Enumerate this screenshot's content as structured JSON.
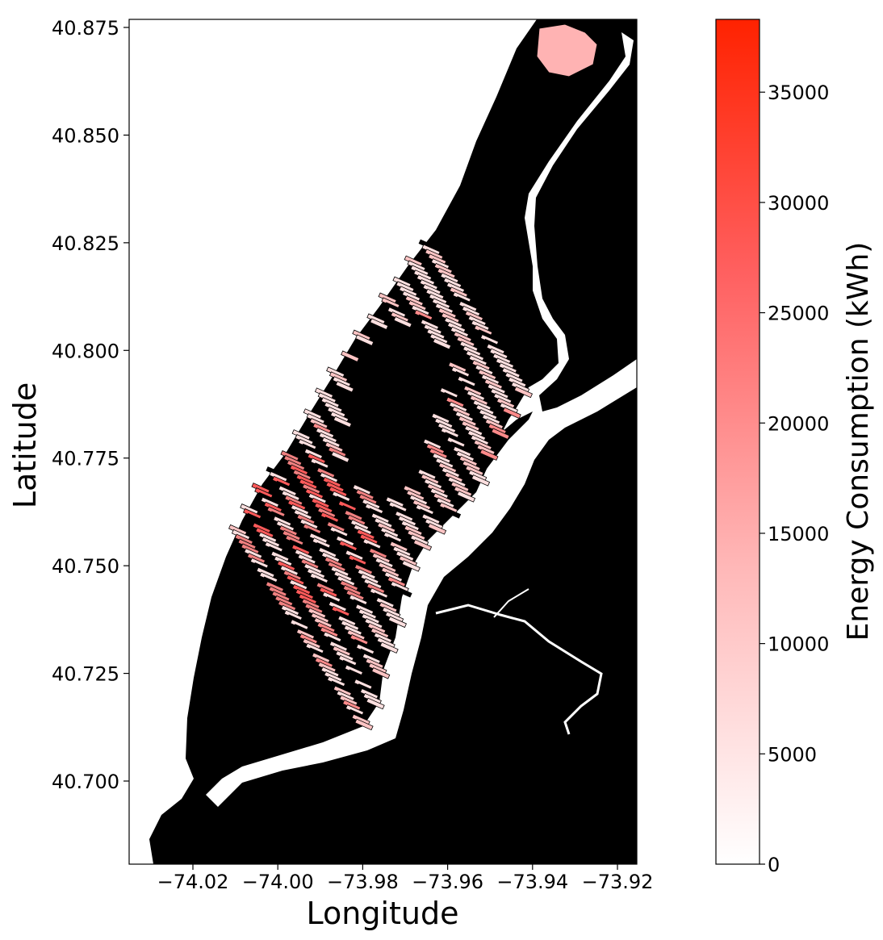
{
  "map": {
    "xlabel": "Longitude",
    "ylabel": "Latitude",
    "x_ticks": [
      "−74.02",
      "−74.00",
      "−73.98",
      "−73.96",
      "−73.94",
      "−73.92"
    ],
    "x_tick_values": [
      -74.02,
      -74.0,
      -73.98,
      -73.96,
      -73.94,
      -73.92
    ],
    "y_ticks": [
      "40.875",
      "40.850",
      "40.825",
      "40.800",
      "40.775",
      "40.750",
      "40.725",
      "40.700"
    ],
    "y_tick_values": [
      40.875,
      40.85,
      40.825,
      40.8,
      40.775,
      40.75,
      40.725,
      40.7
    ],
    "background_color": "#000000",
    "water_color": "#ffffff"
  },
  "colorbar": {
    "label": "Energy Consumption (kWh)",
    "ticks": [
      "0",
      "5000",
      "10000",
      "15000",
      "20000",
      "25000",
      "30000",
      "35000"
    ],
    "tick_values": [
      0,
      5000,
      10000,
      15000,
      20000,
      25000,
      30000,
      35000
    ],
    "min": 0,
    "max": 38300,
    "color_low": "#ffffff",
    "color_high": "#ff2200"
  }
}
